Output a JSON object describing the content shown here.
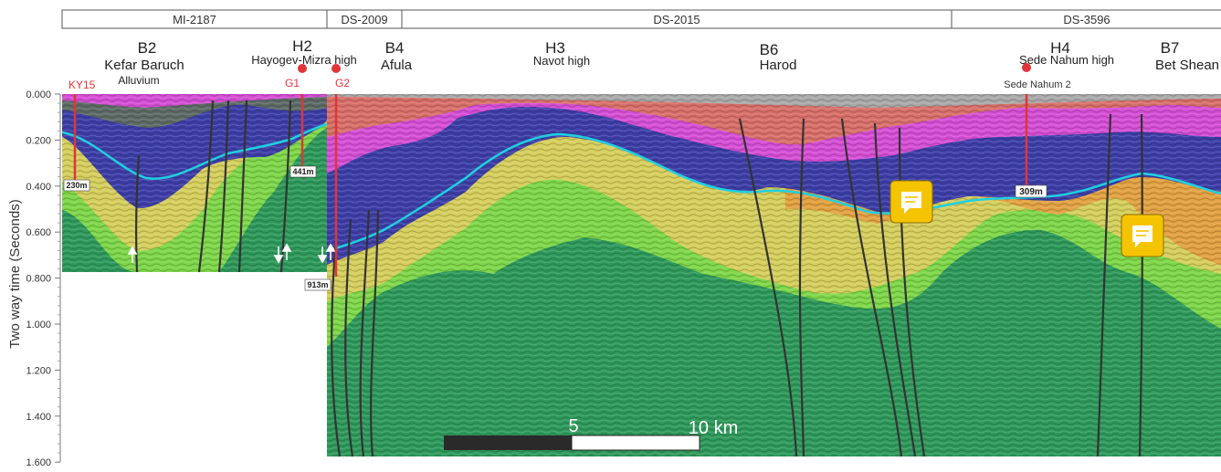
{
  "profiles": [
    {
      "label": "MI-2187"
    },
    {
      "label": "DS-2009"
    },
    {
      "label": "DS-2015"
    },
    {
      "label": "DS-3596"
    }
  ],
  "structures": [
    {
      "code": "B2",
      "name": "Kefar Baruch"
    },
    {
      "code": "H2",
      "name": "Hayogev-Mizra high"
    },
    {
      "code": "B4",
      "name": "Afula"
    },
    {
      "code": "H3",
      "name": "Navot high"
    },
    {
      "code": "B6",
      "name": "Harod"
    },
    {
      "code": "H4",
      "name": "Sede Nahum high"
    },
    {
      "code": "B7",
      "name": "Bet Shean"
    }
  ],
  "alluvium_label": "Alluvium",
  "wells": [
    {
      "name": "KY15",
      "depth": "230m"
    },
    {
      "name": "G1",
      "depth": "441m"
    },
    {
      "name": "G2",
      "depth": "913m"
    },
    {
      "name": "Sede Nahum 2",
      "depth": "309m"
    }
  ],
  "y_axis": {
    "label": "Two way time (Seconds)",
    "ticks": [
      "0.000",
      "0.200",
      "0.400",
      "0.600",
      "0.800",
      "1.000",
      "1.200",
      "1.400",
      "1.600"
    ]
  },
  "scale_bar": {
    "mid": "5",
    "end": "10 km"
  },
  "colors": {
    "red_unit": "#d9706a",
    "magenta_unit": "#d64fd6",
    "blue_unit": "#3e3fa8",
    "orange_unit": "#e3a243",
    "yellow_unit": "#d6cf5e",
    "lightgreen_unit": "#7fd74a",
    "darkgreen_unit": "#2f9a5c",
    "cyan_horizon": "#1fd0e0",
    "well_red": "#e0353a",
    "note_yellow": "#f5c400"
  }
}
